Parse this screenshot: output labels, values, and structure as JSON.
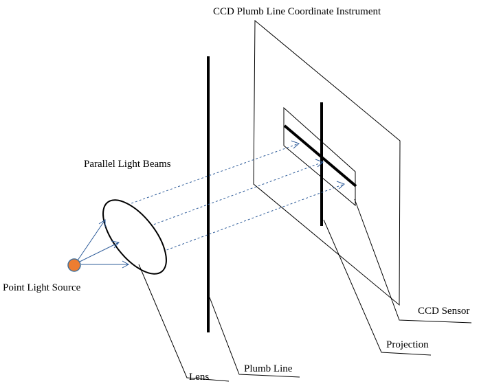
{
  "title": "CCD Plumb Line Coordinate Instrument",
  "labels": {
    "parallel_light_beams": "Parallel Light Beams",
    "point_light_source": "Point Light Source",
    "ccd_sensor": "CCD Sensor",
    "projection": "Projection",
    "lens": "Lens",
    "plumb_line": "Plumb Line"
  },
  "colors": {
    "light_source": "#ED7D31",
    "light_source_stroke": "#41719C",
    "beam": "#2E5C9A",
    "ink": "#000000"
  }
}
